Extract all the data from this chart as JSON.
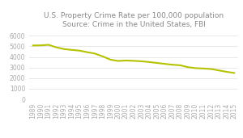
{
  "title": "U.S. Property Crime Rate per 100,000 population\nSource: Crime in the United States, FBI",
  "years": [
    1989,
    1990,
    1991,
    1992,
    1993,
    1994,
    1995,
    1996,
    1997,
    1998,
    1999,
    2000,
    2001,
    2002,
    2003,
    2004,
    2005,
    2006,
    2007,
    2008,
    2009,
    2010,
    2011,
    2012,
    2013,
    2014,
    2015
  ],
  "values": [
    5077,
    5088,
    5140,
    4903,
    4740,
    4660,
    4591,
    4444,
    4312,
    4049,
    3743,
    3618,
    3658,
    3631,
    3588,
    3517,
    3432,
    3346,
    3264,
    3212,
    3036,
    2942,
    2908,
    2859,
    2731,
    2596,
    2487
  ],
  "line_color": "#b5c200",
  "background_color": "#ffffff",
  "grid_color": "#e8e8e8",
  "ylim": [
    0,
    6500
  ],
  "yticks": [
    0,
    1000,
    2000,
    3000,
    4000,
    5000,
    6000
  ],
  "title_fontsize": 6.5,
  "tick_fontsize": 5.5,
  "line_width": 1.5,
  "tick_color": "#aaaaaa",
  "title_color": "#888888"
}
